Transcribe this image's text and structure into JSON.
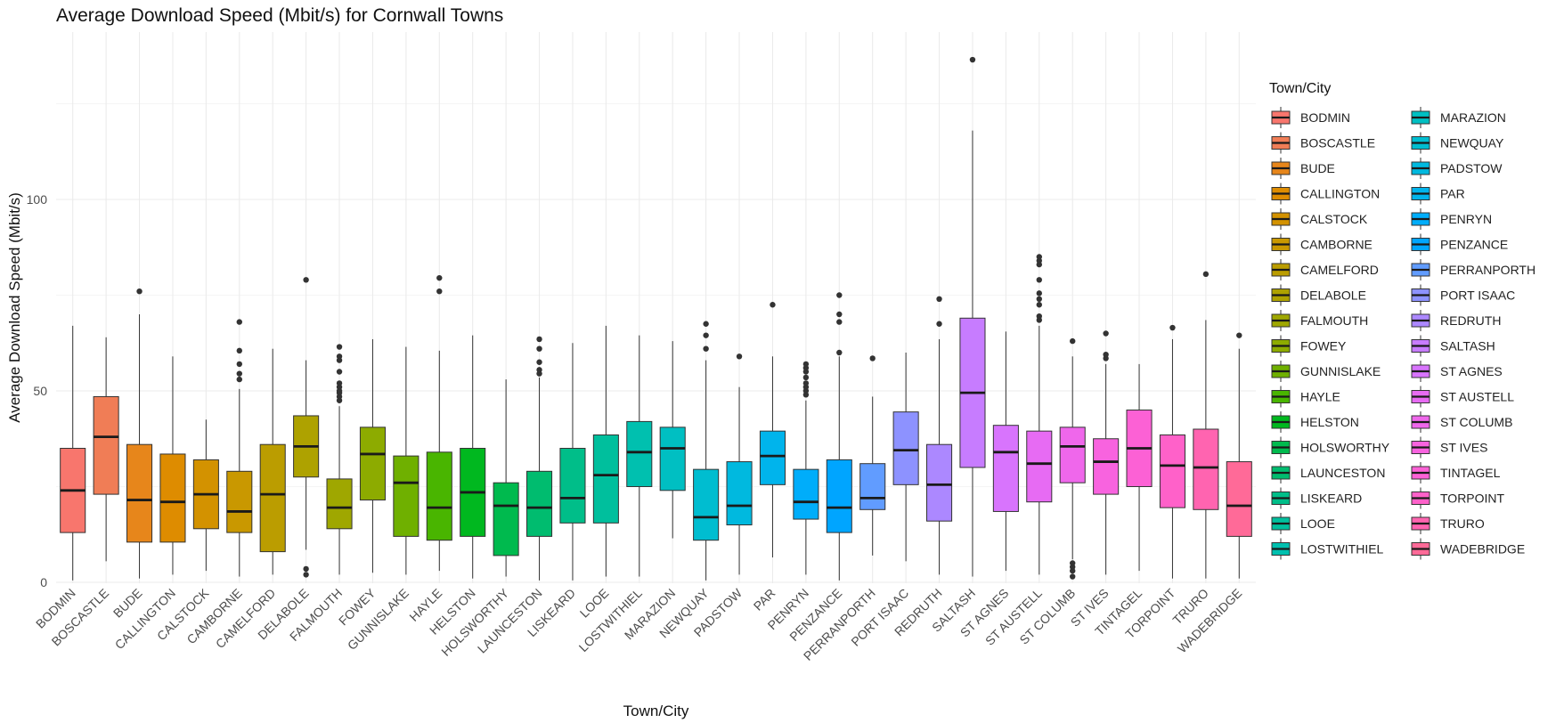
{
  "chart_data": {
    "type": "boxplot",
    "title": "Average Download Speed (Mbit/s) for Cornwall Towns",
    "xlabel": "Town/City",
    "ylabel": "Average Download Speed (Mbit/s)",
    "ylim": [
      -5,
      145
    ],
    "yticks": [
      0,
      50,
      100
    ],
    "grid": true,
    "legend": {
      "title": "Town/City",
      "position": "right",
      "columns": 2
    },
    "series": [
      {
        "name": "BODMIN",
        "color": "#F8766D",
        "min": 0.5,
        "q1": 13,
        "median": 24,
        "q3": 35,
        "max": 67,
        "outliers": []
      },
      {
        "name": "BOSCASTLE",
        "color": "#F07D56",
        "min": 5.5,
        "q1": 23,
        "median": 38,
        "q3": 48.5,
        "max": 64,
        "outliers": []
      },
      {
        "name": "BUDE",
        "color": "#E7861B",
        "min": 1,
        "q1": 10.5,
        "median": 21.5,
        "q3": 36,
        "max": 70,
        "outliers": [
          76
        ]
      },
      {
        "name": "CALLINGTON",
        "color": "#DE8C00",
        "min": 2,
        "q1": 10.5,
        "median": 21,
        "q3": 33.5,
        "max": 59,
        "outliers": []
      },
      {
        "name": "CALSTOCK",
        "color": "#D39200",
        "min": 3,
        "q1": 14,
        "median": 23,
        "q3": 32,
        "max": 42.5,
        "outliers": []
      },
      {
        "name": "CAMBORNE",
        "color": "#C99800",
        "min": 1.5,
        "q1": 13,
        "median": 18.5,
        "q3": 29,
        "max": 50.5,
        "outliers": [
          53,
          54.5,
          57,
          60.5,
          68
        ]
      },
      {
        "name": "CAMELFORD",
        "color": "#BB9D00",
        "min": 2,
        "q1": 8,
        "median": 23,
        "q3": 36,
        "max": 61,
        "outliers": []
      },
      {
        "name": "DELABOLE",
        "color": "#AEA200",
        "min": 8.5,
        "q1": 27.5,
        "median": 35.5,
        "q3": 43.5,
        "max": 58,
        "outliers": [
          2,
          3.5,
          79
        ]
      },
      {
        "name": "FALMOUTH",
        "color": "#9FA700",
        "min": 2,
        "q1": 14,
        "median": 19.5,
        "q3": 27,
        "max": 46,
        "outliers": [
          47.5,
          48.5,
          49.5,
          50,
          51,
          52,
          55,
          58,
          59,
          61.5
        ]
      },
      {
        "name": "FOWEY",
        "color": "#8DAB00",
        "min": 2.5,
        "q1": 21.5,
        "median": 33.5,
        "q3": 40.5,
        "max": 63.5,
        "outliers": []
      },
      {
        "name": "GUNNISLAKE",
        "color": "#6FB000",
        "min": 2,
        "q1": 12,
        "median": 26,
        "q3": 33,
        "max": 61.5,
        "outliers": []
      },
      {
        "name": "HAYLE",
        "color": "#49B500",
        "min": 3,
        "q1": 11,
        "median": 19.5,
        "q3": 34,
        "max": 60.5,
        "outliers": [
          76,
          79.5
        ]
      },
      {
        "name": "HELSTON",
        "color": "#00B81F",
        "min": 1,
        "q1": 12,
        "median": 23.5,
        "q3": 35,
        "max": 64.5,
        "outliers": []
      },
      {
        "name": "HOLSWORTHY",
        "color": "#00BA4E",
        "min": 1.5,
        "q1": 7,
        "median": 20,
        "q3": 26,
        "max": 53,
        "outliers": []
      },
      {
        "name": "LAUNCESTON",
        "color": "#00BC6F",
        "min": 0.5,
        "q1": 12,
        "median": 19.5,
        "q3": 29,
        "max": 53.5,
        "outliers": [
          54.5,
          55.5,
          57.5,
          61,
          63.5
        ]
      },
      {
        "name": "LISKEARD",
        "color": "#00BE89",
        "min": 0.5,
        "q1": 15.5,
        "median": 22,
        "q3": 35,
        "max": 62.5,
        "outliers": []
      },
      {
        "name": "LOOE",
        "color": "#00BF9D",
        "min": 1.5,
        "q1": 15.5,
        "median": 28,
        "q3": 38.5,
        "max": 67,
        "outliers": []
      },
      {
        "name": "LOSTWITHIEL",
        "color": "#00C0AF",
        "min": 1.5,
        "q1": 25,
        "median": 34,
        "q3": 42,
        "max": 64.5,
        "outliers": []
      },
      {
        "name": "MARAZION",
        "color": "#00BFC2",
        "min": 11.5,
        "q1": 24,
        "median": 35,
        "q3": 40.5,
        "max": 63,
        "outliers": []
      },
      {
        "name": "NEWQUAY",
        "color": "#00BDD0",
        "min": 0.5,
        "q1": 11,
        "median": 17,
        "q3": 29.5,
        "max": 58,
        "outliers": [
          61,
          64.5,
          67.5
        ]
      },
      {
        "name": "PADSTOW",
        "color": "#00B9DF",
        "min": 2,
        "q1": 15,
        "median": 20,
        "q3": 31.5,
        "max": 51,
        "outliers": [
          59
        ]
      },
      {
        "name": "PAR",
        "color": "#00B4EC",
        "min": 6.5,
        "q1": 25.5,
        "median": 33,
        "q3": 39.5,
        "max": 59,
        "outliers": [
          72.5
        ]
      },
      {
        "name": "PENRYN",
        "color": "#00ADFA",
        "min": 2,
        "q1": 16.5,
        "median": 21,
        "q3": 29.5,
        "max": 47.5,
        "outliers": [
          49,
          50,
          51,
          52,
          53.5,
          55,
          56,
          57
        ]
      },
      {
        "name": "PENZANCE",
        "color": "#00A5FF",
        "min": 0.5,
        "q1": 13,
        "median": 19.5,
        "q3": 32,
        "max": 59,
        "outliers": [
          60,
          68,
          70,
          75
        ]
      },
      {
        "name": "PERRANPORTH",
        "color": "#619CFF",
        "min": 7,
        "q1": 19,
        "median": 22,
        "q3": 31,
        "max": 48.5,
        "outliers": [
          58.5
        ]
      },
      {
        "name": "PORT ISAAC",
        "color": "#8D92FF",
        "min": 5.5,
        "q1": 25.5,
        "median": 34.5,
        "q3": 44.5,
        "max": 60,
        "outliers": []
      },
      {
        "name": "REDRUTH",
        "color": "#AC88FF",
        "min": 2,
        "q1": 16,
        "median": 25.5,
        "q3": 36,
        "max": 63.5,
        "outliers": [
          67.5,
          74
        ]
      },
      {
        "name": "SALTASH",
        "color": "#C77CFF",
        "min": 1.5,
        "q1": 30,
        "median": 49.5,
        "q3": 69,
        "max": 118,
        "outliers": [
          136.5
        ]
      },
      {
        "name": "ST AGNES",
        "color": "#D874FD",
        "min": 3,
        "q1": 18.5,
        "median": 34,
        "q3": 41,
        "max": 65.5,
        "outliers": []
      },
      {
        "name": "ST AUSTELL",
        "color": "#E76BF3",
        "min": 2,
        "q1": 21,
        "median": 31,
        "q3": 39.5,
        "max": 67,
        "outliers": [
          68.5,
          69.5,
          72.5,
          74,
          75.5,
          79,
          83,
          84,
          85
        ]
      },
      {
        "name": "ST COLUMB",
        "color": "#EF67EB",
        "min": 6,
        "q1": 26,
        "median": 35.5,
        "q3": 40.5,
        "max": 59,
        "outliers": [
          1.5,
          3,
          4,
          5,
          63
        ]
      },
      {
        "name": "ST IVES",
        "color": "#F863DF",
        "min": 2,
        "q1": 23,
        "median": 31.5,
        "q3": 37.5,
        "max": 57,
        "outliers": [
          58.5,
          59.5,
          65
        ]
      },
      {
        "name": "TINTAGEL",
        "color": "#FC61D5",
        "min": 3,
        "q1": 25,
        "median": 35,
        "q3": 45,
        "max": 57,
        "outliers": []
      },
      {
        "name": "TORPOINT",
        "color": "#FF61C9",
        "min": 1,
        "q1": 19.5,
        "median": 30.5,
        "q3": 38.5,
        "max": 63.5,
        "outliers": [
          66.5
        ]
      },
      {
        "name": "TRURO",
        "color": "#FF64B0",
        "min": 1,
        "q1": 19,
        "median": 30,
        "q3": 40,
        "max": 68.5,
        "outliers": [
          80.5
        ]
      },
      {
        "name": "WADEBRIDGE",
        "color": "#FF6A98",
        "min": 1,
        "q1": 12,
        "median": 20,
        "q3": 31.5,
        "max": 61,
        "outliers": [
          64.5
        ]
      }
    ]
  }
}
